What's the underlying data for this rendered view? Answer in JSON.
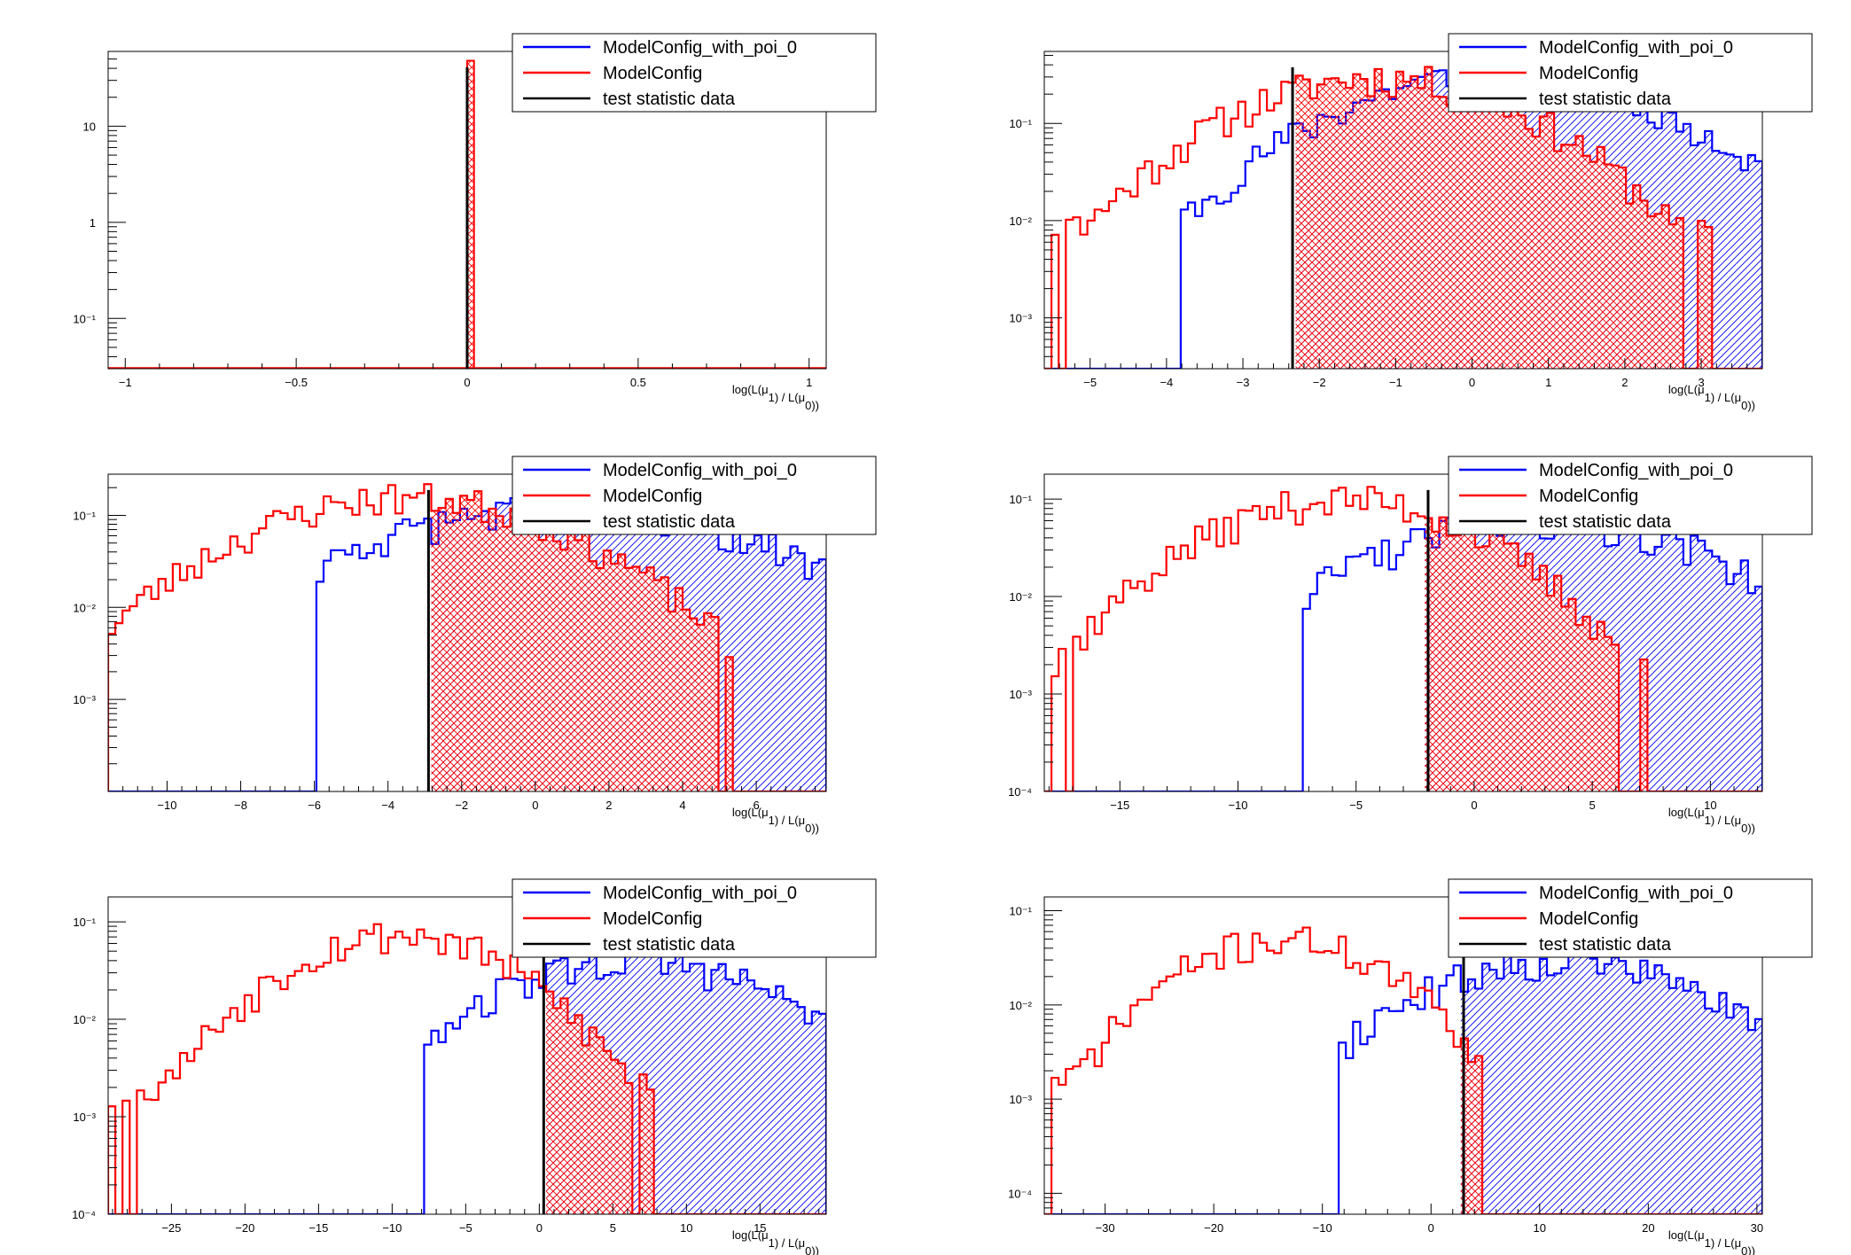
{
  "legend": {
    "null_name": "ModelConfig_with_poi_0",
    "alt_name": "ModelConfig",
    "data_name": "test statistic data"
  },
  "colors": {
    "null": "#0000ff",
    "alt": "#ff0000",
    "data": "#000000"
  },
  "chart_data": [
    {
      "type": "histogram",
      "xlabel_parts": [
        "log(L(",
        "μ",
        ") / L(",
        "μ",
        "))"
      ],
      "xlabel_subs": [
        "1",
        "0"
      ],
      "xlim": [
        -1.05,
        1.05
      ],
      "ylim": [
        0.03,
        60
      ],
      "ylog": true,
      "xticks": [
        -1,
        -0.5,
        0,
        0.5,
        1
      ],
      "yticks": [
        {
          "v": 10,
          "t": "10"
        },
        {
          "v": 1,
          "t": "1"
        },
        {
          "v": 0.1,
          "t": "10⁻¹"
        }
      ],
      "data_x": 0.0,
      "null_spike": {
        "x": 0.0,
        "y": 40
      },
      "alt_spike": {
        "x0": 0.0,
        "x1": 0.02,
        "y": 48
      }
    },
    {
      "type": "histogram",
      "xlabel_parts": [
        "log(L(",
        "μ",
        ") / L(",
        "μ",
        "))"
      ],
      "xlabel_subs": [
        "1",
        "0"
      ],
      "xlim": [
        -5.6,
        3.8
      ],
      "ylim": [
        0.0003,
        0.55
      ],
      "ylog": true,
      "xticks": [
        -5,
        -4,
        -3,
        -2,
        -1,
        0,
        1,
        2,
        3
      ],
      "yticks": [
        {
          "v": 0.1,
          "t": "10⁻¹"
        },
        {
          "v": 0.01,
          "t": "10⁻²"
        },
        {
          "v": 0.001,
          "t": "10⁻³"
        }
      ],
      "data_x": -2.35,
      "alt_peak": -1.2,
      "alt_width": 1.45,
      "alt_amp": 0.3,
      "alt_range": [
        -5.5,
        3.2
      ],
      "null_peak": 0.4,
      "null_width": 1.6,
      "null_amp": 0.33,
      "null_range": [
        -4.1,
        3.8
      ],
      "seed": 11
    },
    {
      "type": "histogram",
      "xlabel_parts": [
        "log(L(",
        "μ",
        ") / L(",
        "μ",
        "))"
      ],
      "xlabel_subs": [
        "1",
        "0"
      ],
      "xlim": [
        -11.6,
        7.9
      ],
      "ylim": [
        0.0001,
        0.28
      ],
      "ylog": true,
      "xticks": [
        -10,
        -8,
        -6,
        -4,
        -2,
        0,
        2,
        4,
        6
      ],
      "yticks": [
        {
          "v": 0.1,
          "t": "10⁻¹"
        },
        {
          "v": 0.01,
          "t": "10⁻²"
        },
        {
          "v": 0.001,
          "t": "10⁻³"
        }
      ],
      "data_x": -2.9,
      "alt_peak": -3.4,
      "alt_width": 3.2,
      "alt_amp": 0.16,
      "alt_range": [
        -11.6,
        6.5
      ],
      "null_peak": 0.8,
      "null_width": 4.0,
      "null_amp": 0.12,
      "null_range": [
        -5.9,
        7.9
      ],
      "seed": 23
    },
    {
      "type": "histogram",
      "xlabel_parts": [
        "log(L(",
        "μ",
        ") / L(",
        "μ",
        "))"
      ],
      "xlabel_subs": [
        "1",
        "0"
      ],
      "xlim": [
        -18.2,
        12.2
      ],
      "ylim": [
        0.0001,
        0.18
      ],
      "ylog": true,
      "xticks": [
        -15,
        -10,
        -5,
        0,
        5,
        10
      ],
      "yticks": [
        {
          "v": 0.1,
          "t": "10⁻¹"
        },
        {
          "v": 0.01,
          "t": "10⁻²"
        },
        {
          "v": 0.001,
          "t": "10⁻³"
        },
        {
          "v": 0.0001,
          "t": "10⁻⁴"
        }
      ],
      "data_x": -1.95,
      "alt_peak": -5.5,
      "alt_width": 4.4,
      "alt_amp": 0.1,
      "alt_range": [
        -18.2,
        7.4
      ],
      "null_peak": 3.0,
      "null_width": 5.5,
      "null_amp": 0.06,
      "null_range": [
        -7.2,
        12.2
      ],
      "seed": 37
    },
    {
      "type": "histogram",
      "xlabel_parts": [
        "log(L(",
        "μ",
        ") / L(",
        "μ",
        "))"
      ],
      "xlabel_subs": [
        "1",
        "0"
      ],
      "xlim": [
        -29.3,
        19.5
      ],
      "ylim": [
        0.0001,
        0.18
      ],
      "ylog": true,
      "xticks": [
        -25,
        -20,
        -15,
        -10,
        -5,
        0,
        5,
        10,
        15
      ],
      "yticks": [
        {
          "v": 0.1,
          "t": "10⁻¹"
        },
        {
          "v": 0.01,
          "t": "10⁻²"
        },
        {
          "v": 0.001,
          "t": "10⁻³"
        },
        {
          "v": 0.0001,
          "t": "10⁻⁴"
        }
      ],
      "data_x": 0.3,
      "alt_peak": -9.5,
      "alt_width": 6.0,
      "alt_amp": 0.075,
      "alt_range": [
        -29.3,
        7.9
      ],
      "null_peak": 6.5,
      "null_width": 7.5,
      "null_amp": 0.04,
      "null_range": [
        -7.7,
        19.5
      ],
      "seed": 53
    },
    {
      "type": "histogram",
      "xlabel_parts": [
        "log(L(",
        "μ",
        ") / L(",
        "μ",
        "))"
      ],
      "xlabel_subs": [
        "1",
        "0"
      ],
      "xlim": [
        -35.6,
        30.5
      ],
      "ylim": [
        6e-05,
        0.14
      ],
      "ylog": true,
      "xticks": [
        -30,
        -20,
        -10,
        0,
        10,
        20,
        30
      ],
      "yticks": [
        {
          "v": 0.1,
          "t": "10⁻¹"
        },
        {
          "v": 0.01,
          "t": "10⁻²"
        },
        {
          "v": 0.001,
          "t": "10⁻³"
        },
        {
          "v": 0.0001,
          "t": "10⁻⁴"
        }
      ],
      "data_x": 3.0,
      "alt_peak": -13.5,
      "alt_width": 7.5,
      "alt_amp": 0.05,
      "alt_range": [
        -35.6,
        4.8
      ],
      "null_peak": 12.0,
      "null_width": 10.0,
      "null_amp": 0.03,
      "null_range": [
        -8.3,
        30.5
      ],
      "seed": 71
    }
  ]
}
